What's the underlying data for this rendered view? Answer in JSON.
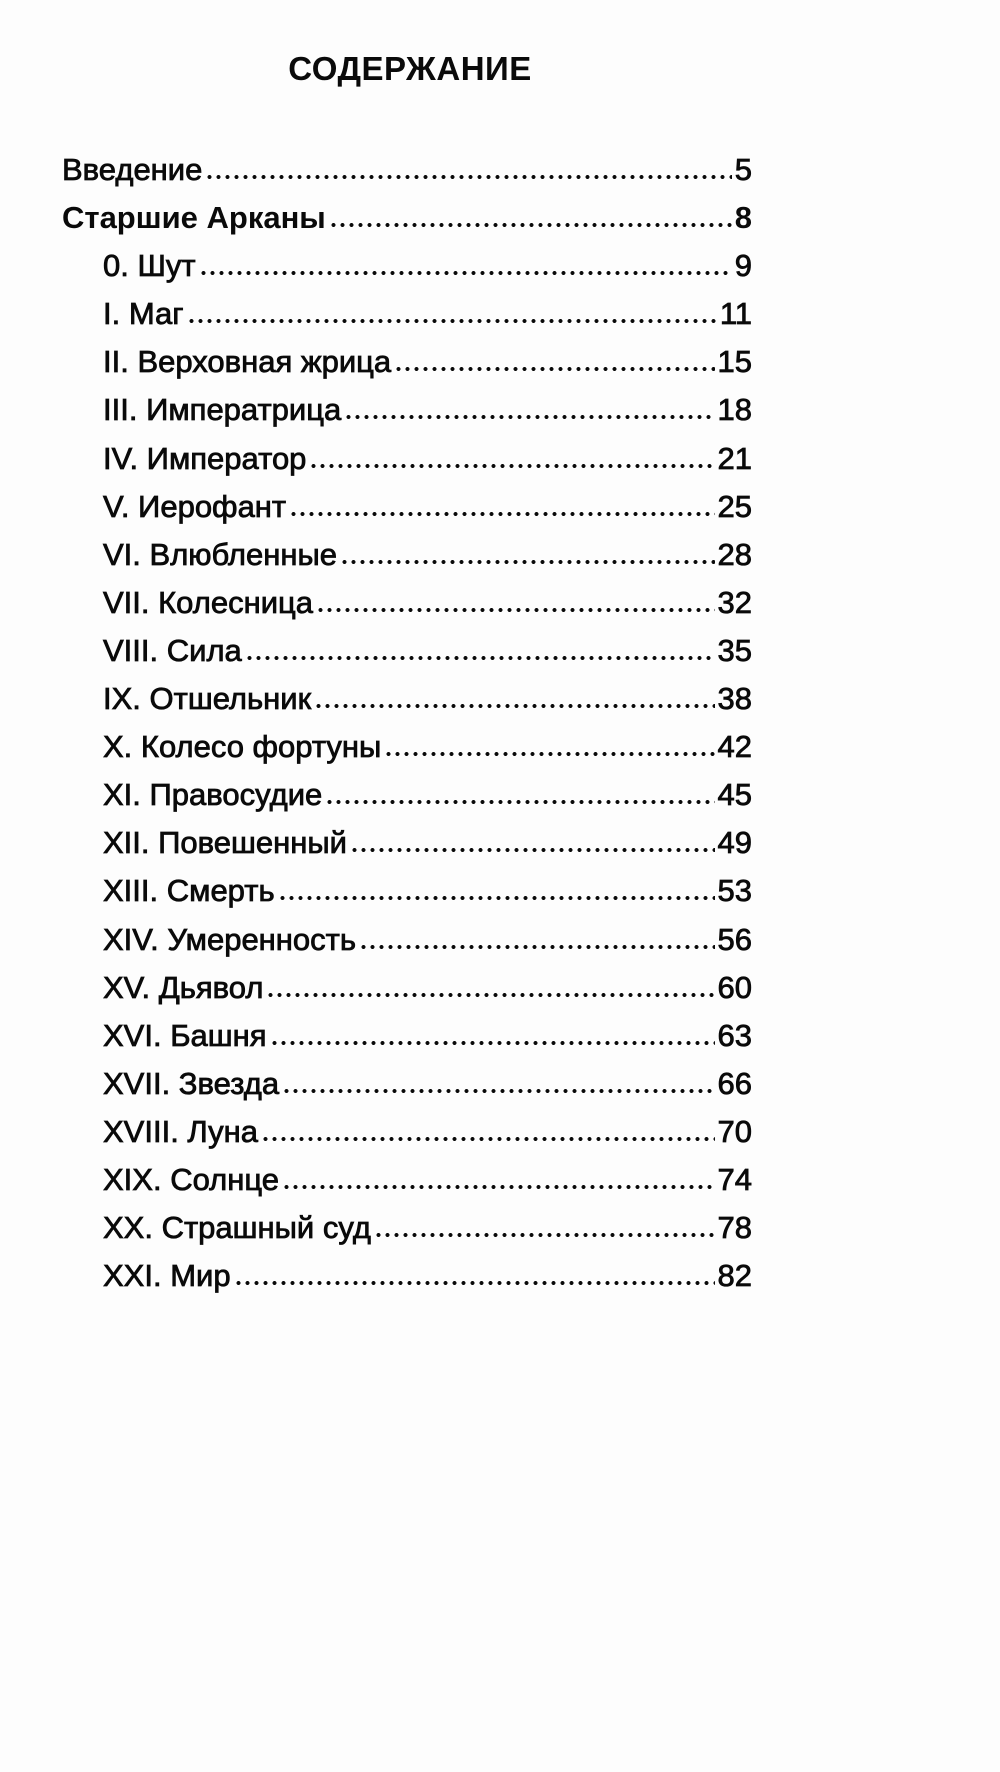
{
  "title": "СОДЕРЖАНИЕ",
  "entries": [
    {
      "label": "Введение",
      "page": "5",
      "level": 0,
      "bold": false
    },
    {
      "label": "Старшие Арканы",
      "page": "8",
      "level": 0,
      "bold": true
    },
    {
      "label": "0. Шут",
      "page": "9",
      "level": 1
    },
    {
      "label": "I. Маг",
      "page": "11",
      "level": 1
    },
    {
      "label": "II. Верховная жрица",
      "page": "15",
      "level": 1
    },
    {
      "label": "III. Императрица",
      "page": "18",
      "level": 1
    },
    {
      "label": "IV. Император",
      "page": "21",
      "level": 1
    },
    {
      "label": "V. Иерофант",
      "page": "25",
      "level": 1
    },
    {
      "label": "VI. Влюбленные",
      "page": "28",
      "level": 1
    },
    {
      "label": "VII. Колесница",
      "page": "32",
      "level": 1
    },
    {
      "label": "VIII. Сила",
      "page": "35",
      "level": 1
    },
    {
      "label": "IX. Отшельник",
      "page": "38",
      "level": 1
    },
    {
      "label": "X. Колесо фортуны",
      "page": "42",
      "level": 1
    },
    {
      "label": "XI. Правосудие",
      "page": "45",
      "level": 1
    },
    {
      "label": "XII. Повешенный",
      "page": "49",
      "level": 1
    },
    {
      "label": "XIII. Смерть",
      "page": "53",
      "level": 1
    },
    {
      "label": "XIV. Умеренность",
      "page": "56",
      "level": 1
    },
    {
      "label": "XV. Дьявол",
      "page": "60",
      "level": 1
    },
    {
      "label": "XVI. Башня",
      "page": "63",
      "level": 1
    },
    {
      "label": "XVII. Звезда",
      "page": "66",
      "level": 1
    },
    {
      "label": "XVIII. Луна",
      "page": "70",
      "level": 1
    },
    {
      "label": "XIX. Солнце",
      "page": "74",
      "level": 1
    },
    {
      "label": "XX. Страшный суд",
      "page": "78",
      "level": 1
    },
    {
      "label": "XXI. Мир",
      "page": "82",
      "level": 1
    }
  ]
}
